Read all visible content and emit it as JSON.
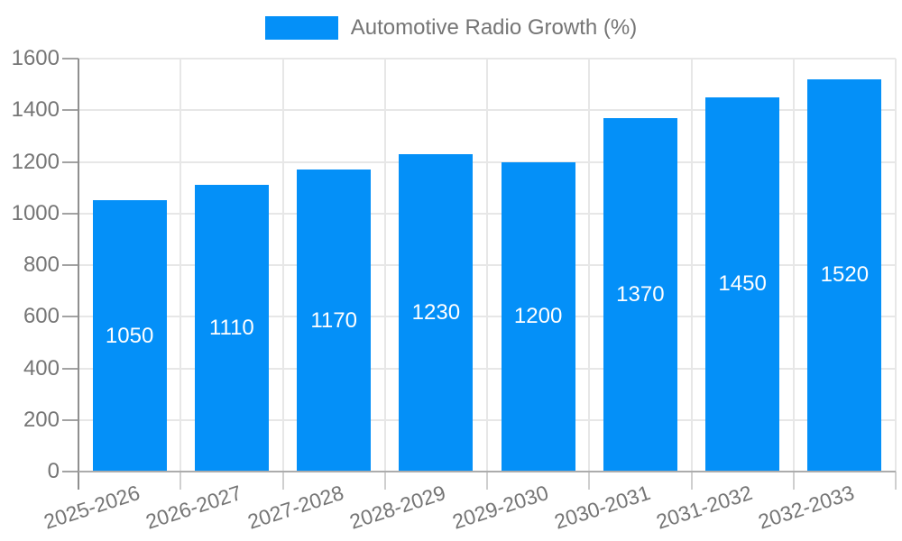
{
  "chart_data": {
    "type": "bar",
    "title": "",
    "legend": {
      "label": "Automotive Radio Growth (%)",
      "position": "top"
    },
    "categories": [
      "2025-2026",
      "2026-2027",
      "2027-2028",
      "2028-2029",
      "2029-2030",
      "2030-2031",
      "2031-2032",
      "2032-2033"
    ],
    "values": [
      1050,
      1110,
      1170,
      1230,
      1200,
      1370,
      1450,
      1520
    ],
    "xlabel": "",
    "ylabel": "",
    "ylim": [
      0,
      1600
    ],
    "ytick_step": 200,
    "yticks": [
      0,
      200,
      400,
      600,
      800,
      1000,
      1200,
      1400,
      1600
    ],
    "grid": true,
    "value_labels_inside_bars": true,
    "colors": {
      "bar": "#0490f8",
      "bar_value_text": "#ffffff",
      "axis_text": "#757575",
      "gridline": "#e7e7e7",
      "axis_line": "#8f8f8f",
      "baseline": "#acacac"
    }
  }
}
